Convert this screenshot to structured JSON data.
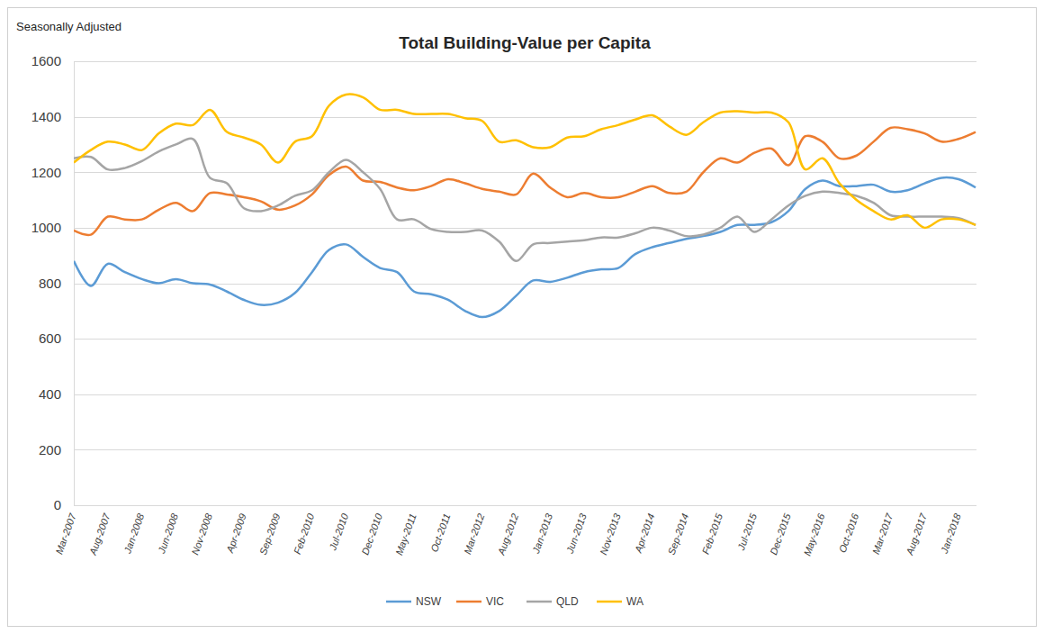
{
  "chart_data": {
    "type": "line",
    "title": "Total Building-Value per Capita",
    "subtitle": "Seasonally Adjusted",
    "categories": [
      "Mar-2007",
      null,
      "Aug-2007",
      null,
      "Jan-2008",
      null,
      "Jun-2008",
      null,
      "Nov-2008",
      null,
      "Apr-2009",
      null,
      "Sep-2009",
      null,
      "Feb-2010",
      null,
      "Jul-2010",
      null,
      "Dec-2010",
      null,
      "May-2011",
      null,
      "Oct-2011",
      null,
      "Mar-2012",
      null,
      "Aug-2012",
      null,
      "Jan-2013",
      null,
      "Jun-2013",
      null,
      "Nov-2013",
      null,
      "Apr-2014",
      null,
      "Sep-2014",
      null,
      "Feb-2015",
      null,
      "Jul-2015",
      null,
      "Dec-2015",
      null,
      "May-2016",
      null,
      "Oct-2016",
      null,
      "Mar-2017",
      null,
      "Aug-2017",
      null,
      "Jan-2018",
      null
    ],
    "series": [
      {
        "name": "NSW",
        "color": "#5b9bd5",
        "values": [
          880,
          790,
          870,
          840,
          815,
          800,
          815,
          800,
          795,
          770,
          740,
          722,
          730,
          765,
          840,
          920,
          940,
          895,
          855,
          840,
          770,
          760,
          740,
          700,
          678,
          700,
          755,
          810,
          805,
          820,
          840,
          850,
          855,
          905,
          930,
          945,
          960,
          970,
          985,
          1010,
          1010,
          1020,
          1060,
          1140,
          1170,
          1150,
          1150,
          1155,
          1130,
          1135,
          1160,
          1180,
          1175,
          1145
        ]
      },
      {
        "name": "VIC",
        "color": "#ed7d31",
        "values": [
          990,
          975,
          1040,
          1030,
          1030,
          1065,
          1090,
          1060,
          1125,
          1120,
          1110,
          1095,
          1065,
          1080,
          1120,
          1190,
          1220,
          1170,
          1165,
          1145,
          1135,
          1150,
          1175,
          1160,
          1140,
          1130,
          1120,
          1195,
          1145,
          1110,
          1125,
          1110,
          1110,
          1130,
          1150,
          1125,
          1130,
          1200,
          1250,
          1235,
          1270,
          1285,
          1225,
          1330,
          1310,
          1250,
          1260,
          1310,
          1360,
          1355,
          1340,
          1310,
          1320,
          1345
        ]
      },
      {
        "name": "QLD",
        "color": "#a5a5a5",
        "values": [
          1250,
          1255,
          1210,
          1215,
          1240,
          1275,
          1300,
          1320,
          1180,
          1160,
          1070,
          1060,
          1080,
          1115,
          1135,
          1200,
          1245,
          1200,
          1140,
          1030,
          1030,
          995,
          985,
          985,
          990,
          950,
          880,
          940,
          945,
          950,
          955,
          965,
          965,
          980,
          1000,
          990,
          970,
          975,
          1000,
          1040,
          985,
          1030,
          1080,
          1115,
          1130,
          1125,
          1115,
          1090,
          1045,
          1040,
          1040,
          1040,
          1035,
          1010
        ]
      },
      {
        "name": "WA",
        "color": "#ffc000",
        "values": [
          1235,
          1280,
          1310,
          1300,
          1280,
          1340,
          1375,
          1370,
          1425,
          1345,
          1325,
          1300,
          1235,
          1310,
          1330,
          1440,
          1480,
          1470,
          1425,
          1425,
          1410,
          1410,
          1410,
          1395,
          1385,
          1310,
          1315,
          1290,
          1290,
          1325,
          1330,
          1355,
          1370,
          1390,
          1405,
          1365,
          1335,
          1380,
          1415,
          1420,
          1415,
          1415,
          1380,
          1210,
          1250,
          1160,
          1100,
          1060,
          1030,
          1045,
          1000,
          1030,
          1030,
          1010
        ]
      }
    ],
    "ylim": [
      0,
      1600
    ],
    "yticks": [
      0,
      200,
      400,
      600,
      800,
      1000,
      1200,
      1400,
      1600
    ],
    "grid": true,
    "legend": "bottom"
  }
}
